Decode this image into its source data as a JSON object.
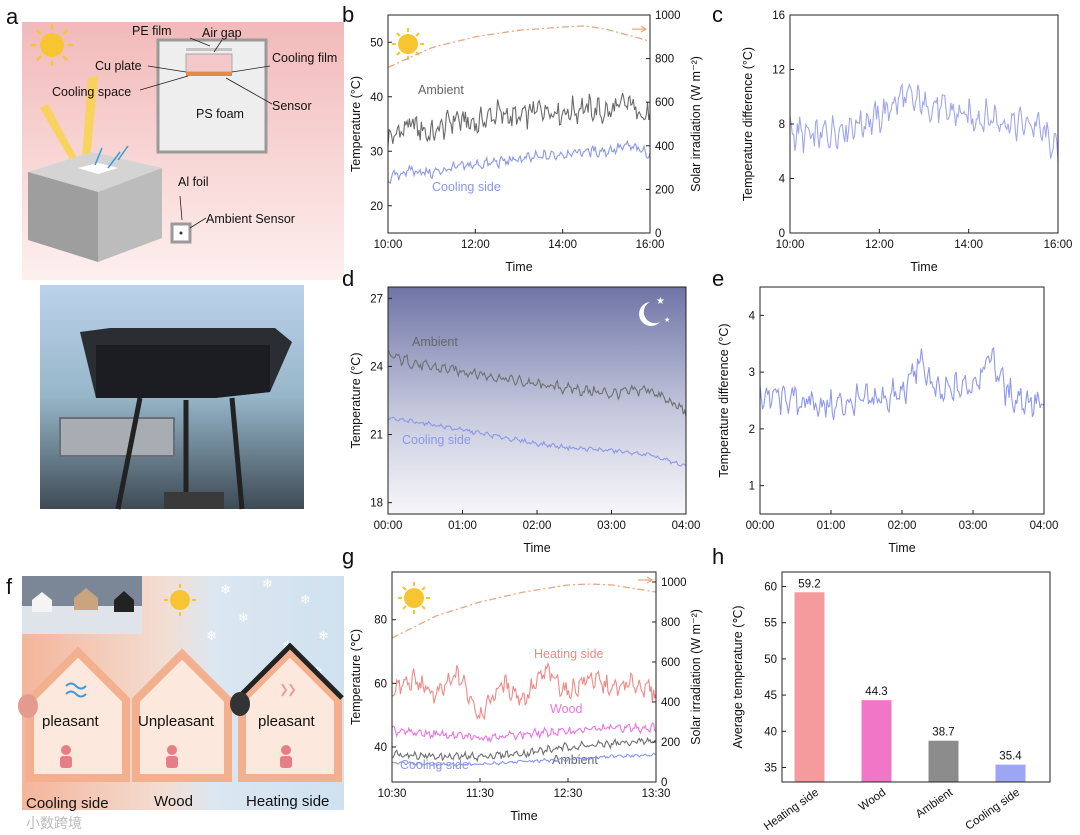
{
  "panel_labels": [
    "a",
    "b",
    "c",
    "d",
    "e",
    "f",
    "g",
    "h"
  ],
  "watermark": "小数跨境",
  "panel_a": {
    "labels": [
      "PE film",
      "Air gap",
      "Cu plate",
      "Cooling film",
      "Cooling space",
      "Sensor",
      "PS foam",
      "Al foil",
      "Ambient Sensor"
    ],
    "colors": {
      "bg_top": "#f2b9b9",
      "bg_bottom": "#fdf0ef",
      "box": "#a7a7a7"
    }
  },
  "panel_f": {
    "house_labels": [
      "pleasant",
      "Unpleasant",
      "pleasant"
    ],
    "bottom_labels": [
      "Cooling side",
      "Wood",
      "Heating side"
    ],
    "colors": {
      "warm": "#f4b59a",
      "cold": "#cfe1ef"
    }
  },
  "chart_data": [
    {
      "id": "b",
      "type": "line",
      "xlabel": "Time",
      "ylabel": "Temperature (°C)",
      "y2label": "Solar irradiation (W m⁻²)",
      "x_ticks": [
        "10:00",
        "12:00",
        "14:00",
        "16:00"
      ],
      "x_range": [
        10,
        16
      ],
      "ylim": [
        15,
        55
      ],
      "y_ticks": [
        20,
        30,
        40,
        50
      ],
      "y2lim": [
        0,
        1000
      ],
      "y2_ticks": [
        0,
        200,
        400,
        600,
        800,
        1000
      ],
      "series": [
        {
          "name": "Ambient",
          "color": "#6a6a6a",
          "x": [
            10,
            10.5,
            11,
            11.5,
            12,
            12.5,
            13,
            13.5,
            14,
            14.5,
            15,
            15.5,
            16
          ],
          "y": [
            32,
            35,
            33,
            36,
            35,
            37,
            36,
            38,
            37,
            38,
            37,
            39,
            36
          ]
        },
        {
          "name": "Cooling side",
          "color": "#8b98e6",
          "x": [
            10,
            10.5,
            11,
            11.5,
            12,
            12.5,
            13,
            13.5,
            14,
            14.5,
            15,
            15.5,
            16
          ],
          "y": [
            25,
            26.5,
            26,
            27,
            27.5,
            28,
            28.5,
            29,
            29.5,
            30,
            30,
            31,
            29.5
          ]
        },
        {
          "name": "",
          "axis": "y2",
          "color": "#e9a77f",
          "dashed": true,
          "x": [
            10,
            11,
            12,
            13,
            14,
            14.5,
            15,
            16
          ],
          "y": [
            760,
            850,
            900,
            930,
            945,
            950,
            935,
            880
          ]
        }
      ],
      "grid": false
    },
    {
      "id": "c",
      "type": "line",
      "xlabel": "Time",
      "ylabel": "Temperature difference (°C)",
      "x_ticks": [
        "10:00",
        "12:00",
        "14:00",
        "16:00"
      ],
      "x_range": [
        10,
        16
      ],
      "ylim": [
        0,
        16
      ],
      "y_ticks": [
        0,
        4,
        8,
        12,
        16
      ],
      "series": [
        {
          "name": "",
          "color": "#9fa7ea",
          "x": [
            10,
            10.5,
            11,
            11.5,
            12,
            12.5,
            13,
            13.5,
            14,
            14.5,
            15,
            15.5,
            16
          ],
          "y": [
            7.5,
            7,
            7.5,
            8,
            8.5,
            10,
            9.5,
            9,
            8.5,
            8.5,
            8,
            8,
            6
          ]
        }
      ],
      "grid": false
    },
    {
      "id": "d",
      "type": "line",
      "xlabel": "Time",
      "ylabel": "Temperature (°C)",
      "x_ticks": [
        "00:00",
        "01:00",
        "02:00",
        "03:00",
        "04:00"
      ],
      "x_range": [
        0,
        4
      ],
      "ylim": [
        17.5,
        27.5
      ],
      "y_ticks": [
        18,
        21,
        24,
        27
      ],
      "series": [
        {
          "name": "Ambient",
          "color": "#707070",
          "x": [
            0,
            0.5,
            1,
            1.5,
            2,
            2.5,
            3,
            3.5,
            4
          ],
          "y": [
            24.5,
            24,
            23.8,
            23.5,
            23.2,
            23,
            22.8,
            23,
            22
          ]
        },
        {
          "name": "Cooling side",
          "color": "#8b98e6",
          "x": [
            0,
            0.5,
            1,
            1.5,
            2,
            2.5,
            3,
            3.5,
            4
          ],
          "y": [
            21.7,
            21.5,
            21.2,
            20.9,
            20.6,
            20.4,
            20.3,
            20.1,
            19.6
          ]
        }
      ],
      "grid": false
    },
    {
      "id": "e",
      "type": "line",
      "xlabel": "Time",
      "ylabel": "Temperature difference (°C)",
      "x_ticks": [
        "00:00",
        "01:00",
        "02:00",
        "03:00",
        "04:00"
      ],
      "x_range": [
        0,
        4
      ],
      "ylim": [
        0.5,
        4.5
      ],
      "y_ticks": [
        1,
        2,
        3,
        4
      ],
      "series": [
        {
          "name": "",
          "color": "#8f98ec",
          "x": [
            0,
            0.5,
            1,
            1.5,
            2,
            2.25,
            2.5,
            3,
            3.25,
            3.5,
            4
          ],
          "y": [
            2.6,
            2.5,
            2.4,
            2.5,
            2.6,
            3.2,
            2.6,
            2.8,
            3.3,
            2.6,
            2.4
          ]
        }
      ],
      "grid": false
    },
    {
      "id": "g",
      "type": "line",
      "xlabel": "Time",
      "ylabel": "Temperature (℃)",
      "y2label": "Solar irradiation (W m⁻²)",
      "x_ticks": [
        "10:30",
        "11:30",
        "12:30",
        "13:30"
      ],
      "x_range": [
        10.5,
        13.5
      ],
      "ylim": [
        29,
        95
      ],
      "y_ticks": [
        40,
        60,
        80
      ],
      "y2lim": [
        0,
        1050
      ],
      "y2_ticks": [
        0,
        200,
        400,
        600,
        800,
        1000
      ],
      "series": [
        {
          "name": "Heating side",
          "color": "#ee8a86",
          "x": [
            10.5,
            10.75,
            11,
            11.25,
            11.5,
            11.75,
            12,
            12.25,
            12.5,
            12.75,
            13,
            13.25,
            13.5
          ],
          "y": [
            58,
            61,
            56,
            63,
            50,
            60,
            55,
            64,
            57,
            62,
            58,
            60,
            57
          ]
        },
        {
          "name": "Wood",
          "color": "#e877e0",
          "x": [
            10.5,
            11,
            11.5,
            12,
            12.5,
            13,
            13.5
          ],
          "y": [
            45,
            44,
            43,
            44,
            45,
            46,
            46
          ]
        },
        {
          "name": "Ambient",
          "color": "#6f6f6f",
          "x": [
            10.5,
            11,
            11.5,
            12,
            12.5,
            13,
            13.5
          ],
          "y": [
            38,
            37,
            37,
            38,
            40,
            41,
            42
          ]
        },
        {
          "name": "Cooling side",
          "color": "#8b98e6",
          "x": [
            10.5,
            11,
            11.5,
            12,
            12.5,
            13,
            13.5
          ],
          "y": [
            35,
            34.5,
            34.5,
            35.5,
            36,
            37,
            37.5
          ]
        },
        {
          "name": "",
          "axis": "y2",
          "color": "#e9a77f",
          "dashed": true,
          "x": [
            10.5,
            11,
            11.5,
            12,
            12.5,
            12.75,
            13,
            13.5
          ],
          "y": [
            720,
            830,
            900,
            950,
            985,
            990,
            985,
            950
          ]
        }
      ],
      "grid": false
    },
    {
      "id": "h",
      "type": "bar",
      "ylabel": "Average temperature (℃)",
      "categories": [
        "Heating side",
        "Wood",
        "Ambient",
        "Cooling side"
      ],
      "values": [
        59.2,
        44.3,
        38.7,
        35.4
      ],
      "value_labels": [
        "59.2",
        "44.3",
        "38.7",
        "35.4"
      ],
      "colors": [
        "#f59b9d",
        "#f176c8",
        "#8c8c8c",
        "#9da6f4"
      ],
      "ylim": [
        33,
        62
      ],
      "y_ticks": [
        35,
        40,
        45,
        50,
        55,
        60
      ],
      "grid": false
    }
  ]
}
